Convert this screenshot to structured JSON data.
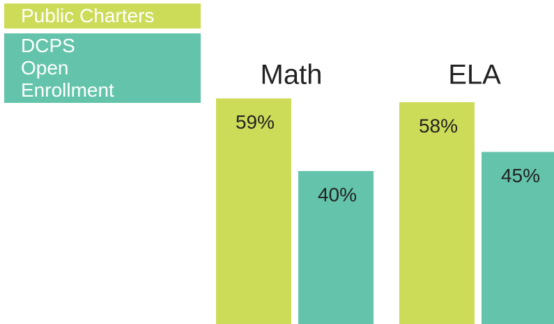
{
  "chart_data": {
    "type": "bar",
    "categories": [
      "Math",
      "ELA"
    ],
    "series": [
      {
        "name": "Public Charters",
        "color": "#cddc58",
        "values": [
          59,
          58
        ],
        "value_labels": [
          "59%",
          "58%"
        ]
      },
      {
        "name": "DCPS Open Enrollment",
        "color": "#64c4ab",
        "values": [
          40,
          45
        ],
        "value_labels": [
          "40%",
          "45%"
        ]
      }
    ],
    "ylim": [
      0,
      80
    ],
    "legend": "top-left"
  }
}
